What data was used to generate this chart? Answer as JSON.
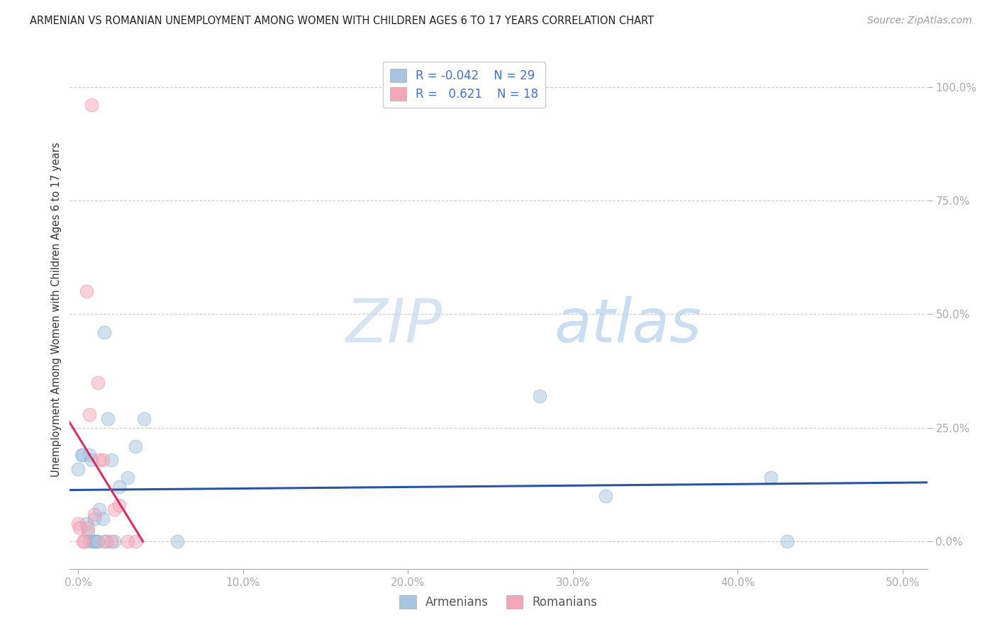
{
  "title": "ARMENIAN VS ROMANIAN UNEMPLOYMENT AMONG WOMEN WITH CHILDREN AGES 6 TO 17 YEARS CORRELATION CHART",
  "source": "Source: ZipAtlas.com",
  "xlabel_ticks": [
    "0.0%",
    "10.0%",
    "20.0%",
    "30.0%",
    "40.0%",
    "50.0%"
  ],
  "xlabel_vals": [
    0.0,
    0.1,
    0.2,
    0.3,
    0.4,
    0.5
  ],
  "ylabel_ticks": [
    "0.0%",
    "25.0%",
    "50.0%",
    "75.0%",
    "100.0%"
  ],
  "ylabel_vals": [
    0.0,
    0.25,
    0.5,
    0.75,
    1.0
  ],
  "ylabel_label": "Unemployment Among Women with Children Ages 6 to 17 years",
  "xlim": [
    -0.005,
    0.515
  ],
  "ylim": [
    -0.06,
    1.08
  ],
  "armenian_R": "-0.042",
  "armenian_N": "29",
  "romanian_R": "0.621",
  "romanian_N": "18",
  "armenian_color": "#a8c4e0",
  "armenian_edge_color": "#7aafd4",
  "armenian_line_color": "#2955a0",
  "romanian_color": "#f4a7b9",
  "romanian_edge_color": "#e888a0",
  "romanian_line_color": "#d43060",
  "watermark_zip": "ZIP",
  "watermark_atlas": "atlas",
  "armenian_x": [
    0.0,
    0.002,
    0.003,
    0.005,
    0.006,
    0.007,
    0.007,
    0.008,
    0.009,
    0.01,
    0.01,
    0.011,
    0.012,
    0.013,
    0.015,
    0.016,
    0.017,
    0.018,
    0.02,
    0.022,
    0.025,
    0.03,
    0.035,
    0.04,
    0.06,
    0.28,
    0.32,
    0.42,
    0.43
  ],
  "armenian_y": [
    0.16,
    0.19,
    0.19,
    0.04,
    0.02,
    0.19,
    0.0,
    0.18,
    0.0,
    0.0,
    0.05,
    0.0,
    0.0,
    0.07,
    0.05,
    0.46,
    0.0,
    0.27,
    0.18,
    0.0,
    0.12,
    0.14,
    0.21,
    0.27,
    0.0,
    0.32,
    0.1,
    0.14,
    0.0
  ],
  "romanian_x": [
    0.0,
    0.001,
    0.003,
    0.004,
    0.005,
    0.006,
    0.007,
    0.008,
    0.01,
    0.012,
    0.013,
    0.015,
    0.016,
    0.02,
    0.022,
    0.025,
    0.03,
    0.035
  ],
  "romanian_y": [
    0.04,
    0.03,
    0.0,
    0.0,
    0.55,
    0.03,
    0.28,
    0.96,
    0.06,
    0.35,
    0.18,
    0.18,
    0.0,
    0.0,
    0.07,
    0.08,
    0.0,
    0.0
  ],
  "dot_size": 180,
  "dot_alpha": 0.5,
  "grid_color": "#cccccc",
  "title_fontsize": 10.5,
  "source_fontsize": 10,
  "tick_fontsize": 11,
  "ylabel_fontsize": 10.5
}
